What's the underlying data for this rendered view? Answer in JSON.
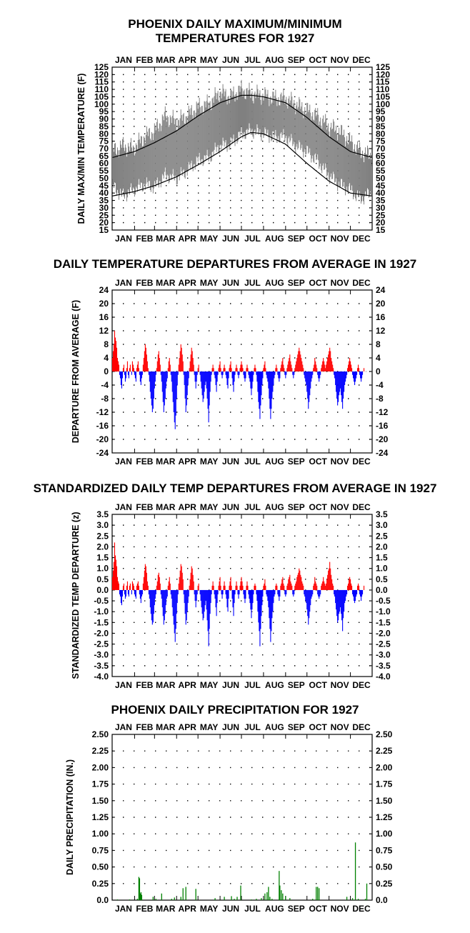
{
  "months": [
    "JAN",
    "FEB",
    "MAR",
    "APR",
    "MAY",
    "JUN",
    "JUL",
    "AUG",
    "SEP",
    "OCT",
    "NOV",
    "DEC"
  ],
  "colors": {
    "positive": "#ff0000",
    "negative": "#0000ff",
    "precip": "#008000",
    "range": "#808080",
    "normal": "#000000"
  },
  "panel1": {
    "title_line1": "PHOENIX DAILY MAXIMUM/MINIMUM",
    "title_line2": "TEMPERATURES FOR 1927",
    "ylabel": "DAILY MAX/MIN TEMPERATURE  (F)",
    "ticks": [
      "125",
      "120",
      "115",
      "110",
      "105",
      "100",
      "95",
      "90",
      "85",
      "80",
      "75",
      "70",
      "65",
      "60",
      "55",
      "50",
      "45",
      "40",
      "35",
      "30",
      "25",
      "20",
      "15"
    ]
  },
  "panel2": {
    "title": "DAILY TEMPERATURE DEPARTURES FROM AVERAGE IN 1927",
    "ylabel": "DEPARTURE FROM AVERAGE  (F)",
    "ticks": [
      "24",
      "20",
      "16",
      "12",
      "8",
      "4",
      "0",
      "-4",
      "-8",
      "-12",
      "-16",
      "-20",
      "-24"
    ]
  },
  "panel3": {
    "title": "STANDARDIZED DAILY TEMP DEPARTURES FROM AVERAGE IN 1927",
    "ylabel": "STANDARDIZED TEMP DEPARTURE  (z)",
    "ticks": [
      "3.5",
      "3.0",
      "2.5",
      "2.0",
      "1.5",
      "1.0",
      "0.5",
      "0.0",
      "-0.5",
      "-1.0",
      "-1.5",
      "-2.0",
      "-2.5",
      "-3.0",
      "-3.5",
      "-4.0"
    ]
  },
  "panel4": {
    "title": "PHOENIX DAILY PRECIPITATION FOR 1927",
    "ylabel": "DAILY PRECIPITATION (IN.)",
    "ticks": [
      "2.50",
      "2.25",
      "2.00",
      "1.75",
      "1.50",
      "1.25",
      "1.00",
      "0.75",
      "0.50",
      "0.25",
      "0.0"
    ]
  },
  "chart_data": [
    {
      "type": "area",
      "title": "PHOENIX DAILY MAXIMUM/MINIMUM TEMPERATURES FOR 1927",
      "ylabel": "DAILY MAX/MIN TEMPERATURE  (F)",
      "ylim": [
        15,
        125
      ],
      "x_unit": "day of year",
      "grid": true,
      "series": [
        {
          "name": "observed",
          "type": "range",
          "sampled_days": [
            1,
            15,
            30,
            46,
            60,
            75,
            91,
            105,
            121,
            136,
            152,
            166,
            182,
            196,
            213,
            227,
            244,
            258,
            274,
            288,
            305,
            319,
            335,
            349,
            365
          ],
          "max": [
            68,
            72,
            70,
            78,
            82,
            92,
            88,
            92,
            98,
            100,
            108,
            105,
            110,
            107,
            106,
            104,
            104,
            100,
            96,
            92,
            85,
            82,
            75,
            68,
            65
          ],
          "min": [
            45,
            38,
            42,
            46,
            44,
            52,
            50,
            55,
            62,
            64,
            72,
            73,
            80,
            82,
            80,
            78,
            78,
            72,
            68,
            62,
            52,
            46,
            42,
            36,
            40
          ]
        },
        {
          "name": "normal max",
          "type": "line",
          "days": [
            1,
            32,
            60,
            91,
            121,
            152,
            182,
            196,
            213,
            244,
            274,
            305,
            335,
            365
          ],
          "values": [
            64,
            68,
            74,
            82,
            92,
            101,
            106,
            106,
            105,
            101,
            91,
            78,
            68,
            64
          ]
        },
        {
          "name": "normal min",
          "type": "line",
          "days": [
            1,
            32,
            60,
            91,
            121,
            152,
            182,
            196,
            213,
            244,
            274,
            305,
            335,
            365
          ],
          "values": [
            38,
            41,
            45,
            51,
            59,
            68,
            78,
            81,
            80,
            73,
            60,
            48,
            40,
            38
          ]
        }
      ]
    },
    {
      "type": "bar",
      "title": "DAILY TEMPERATURE DEPARTURES FROM AVERAGE IN 1927",
      "ylabel": "DEPARTURE FROM AVERAGE  (F)",
      "ylim": [
        -24,
        24
      ],
      "x_unit": "day of year",
      "grid": true,
      "values": [
        4,
        6,
        8,
        12,
        10,
        9,
        7,
        4,
        3,
        2,
        -1,
        -2,
        -4,
        -5,
        -2,
        1,
        2,
        -1,
        -3,
        -2,
        1,
        3,
        -1,
        -2,
        1,
        2,
        0,
        -1,
        3,
        2,
        1,
        -1,
        -2,
        -3,
        1,
        2,
        3,
        1,
        -1,
        -3,
        -4,
        -2,
        -1,
        2,
        4,
        6,
        8,
        7,
        5,
        3,
        1,
        -1,
        -3,
        -6,
        -8,
        -10,
        -12,
        -11,
        -8,
        -5,
        -3,
        -1,
        1,
        3,
        5,
        6,
        4,
        2,
        -1,
        -3,
        -6,
        -9,
        -12,
        -10,
        -8,
        -5,
        -3,
        -2,
        1,
        3,
        4,
        2,
        -1,
        -3,
        -6,
        -9,
        -12,
        -15,
        -17,
        -13,
        -8,
        -4,
        -1,
        2,
        4,
        6,
        8,
        7,
        5,
        3,
        -1,
        -4,
        -8,
        -12,
        -10,
        -7,
        -4,
        -2,
        1,
        3,
        5,
        7,
        6,
        4,
        2,
        -1,
        -3,
        -5,
        -3,
        -1,
        1,
        2,
        0,
        -1,
        -3,
        -5,
        -7,
        -9,
        -8,
        -6,
        -4,
        -3,
        -5,
        -8,
        -11,
        -15,
        -10,
        -6,
        -3,
        -1,
        1,
        2,
        1,
        -1,
        -2,
        -4,
        -6,
        -3,
        -1,
        1,
        2,
        3,
        1,
        -1,
        -2,
        -1,
        1,
        2,
        1,
        -1,
        -2,
        -4,
        -5,
        -2,
        1,
        2,
        3,
        1,
        -2,
        -4,
        -6,
        -3,
        -1,
        1,
        2,
        1,
        -1,
        -2,
        -1,
        1,
        2,
        3,
        2,
        1,
        -1,
        -2,
        -3,
        -2,
        1,
        2,
        1,
        -1,
        -2,
        -3,
        -5,
        -7,
        -5,
        -3,
        -1,
        1,
        2,
        1,
        -1,
        -3,
        -6,
        -9,
        -11,
        -14,
        -10,
        -7,
        -4,
        -2,
        1,
        2,
        3,
        1,
        -1,
        -2,
        -3,
        -5,
        -8,
        -11,
        -14,
        -11,
        -8,
        -6,
        -4,
        -2,
        -1,
        1,
        2,
        1,
        -1,
        -2,
        -3,
        -2,
        1,
        2,
        3,
        4,
        2,
        1,
        -1,
        -2,
        -1,
        1,
        2,
        3,
        4,
        5,
        3,
        2,
        1,
        -1,
        -2,
        -1,
        1,
        2,
        3,
        4,
        5,
        6,
        7,
        6,
        5,
        4,
        3,
        2,
        1,
        -1,
        -2,
        -3,
        -4,
        -6,
        -8,
        -11,
        -9,
        -7,
        -5,
        -3,
        -2,
        -1,
        1,
        2,
        4,
        3,
        2,
        1,
        -1,
        -2,
        -3,
        -2,
        -1,
        1,
        2,
        3,
        4,
        3,
        2,
        1,
        2,
        3,
        4,
        5,
        6,
        7,
        6,
        4,
        3,
        2,
        1,
        -1,
        -2,
        -4,
        -6,
        -8,
        -10,
        -9,
        -7,
        -6,
        -5,
        -7,
        -9,
        -11,
        -8,
        -6,
        -4,
        -3,
        -2,
        -1,
        1,
        2,
        3,
        4,
        3,
        2,
        1,
        -1,
        -2,
        -3,
        -4,
        -3,
        -2,
        -1,
        1,
        2,
        1,
        -1,
        -2,
        -3,
        -2,
        -1,
        0,
        1
      ]
    },
    {
      "type": "bar",
      "title": "STANDARDIZED DAILY TEMP DEPARTURES FROM AVERAGE IN 1927",
      "ylabel": "STANDARDIZED TEMP DEPARTURE  (z)",
      "ylim": [
        -4.0,
        3.5
      ],
      "x_unit": "day of year",
      "grid": true,
      "values": [
        0.6,
        0.9,
        1.3,
        2.2,
        1.6,
        1.4,
        1.1,
        0.6,
        0.4,
        0.3,
        -0.2,
        -0.3,
        -0.6,
        -0.7,
        -0.3,
        0.2,
        0.3,
        -0.2,
        -0.4,
        -0.3,
        0.2,
        0.4,
        -0.2,
        -0.3,
        0.2,
        0.3,
        0.0,
        -0.2,
        0.4,
        0.3,
        0.2,
        -0.2,
        -0.3,
        -0.4,
        0.2,
        0.3,
        0.4,
        0.2,
        -0.2,
        -0.4,
        -0.6,
        -0.3,
        -0.2,
        0.3,
        0.6,
        0.9,
        1.2,
        1.1,
        0.8,
        0.4,
        0.2,
        -0.2,
        -0.4,
        -0.8,
        -1.1,
        -1.4,
        -1.6,
        -1.5,
        -1.1,
        -0.7,
        -0.4,
        -0.2,
        0.2,
        0.4,
        0.7,
        0.8,
        0.6,
        0.3,
        -0.2,
        -0.4,
        -0.8,
        -1.2,
        -1.6,
        -1.4,
        -1.1,
        -0.7,
        -0.4,
        -0.3,
        0.2,
        0.4,
        0.6,
        0.3,
        -0.2,
        -0.4,
        -0.8,
        -1.2,
        -1.6,
        -2.0,
        -2.4,
        -1.8,
        -1.1,
        -0.6,
        -0.2,
        0.3,
        0.6,
        0.9,
        1.2,
        1.1,
        0.8,
        0.5,
        -0.2,
        -0.6,
        -1.1,
        -1.6,
        -1.4,
        -1.0,
        -0.6,
        -0.3,
        0.2,
        0.5,
        0.8,
        1.1,
        1.0,
        0.7,
        0.4,
        -0.2,
        -0.5,
        -0.8,
        -0.5,
        -0.2,
        0.2,
        0.3,
        0.0,
        -0.2,
        -0.5,
        -0.8,
        -1.1,
        -1.4,
        -1.3,
        -1.0,
        -0.7,
        -0.5,
        -0.9,
        -1.4,
        -1.9,
        -2.6,
        -1.8,
        -1.1,
        -0.6,
        -0.2,
        0.2,
        0.4,
        0.2,
        -0.2,
        -0.4,
        -0.8,
        -1.2,
        -0.6,
        -0.2,
        0.2,
        0.4,
        0.6,
        0.2,
        -0.2,
        -0.4,
        -0.2,
        0.2,
        0.4,
        0.2,
        -0.2,
        -0.4,
        -0.8,
        -1.0,
        -0.4,
        0.2,
        0.4,
        0.6,
        0.2,
        -0.4,
        -0.8,
        -1.2,
        -0.6,
        -0.2,
        0.2,
        0.4,
        0.2,
        -0.2,
        -0.4,
        -0.2,
        0.2,
        0.4,
        0.6,
        0.4,
        0.2,
        -0.2,
        -0.4,
        -0.6,
        -0.4,
        0.2,
        0.4,
        0.2,
        -0.2,
        -0.4,
        -0.6,
        -0.9,
        -1.3,
        -0.9,
        -0.6,
        -0.2,
        0.2,
        0.3,
        0.2,
        -0.2,
        -0.5,
        -1.0,
        -1.5,
        -1.9,
        -2.6,
        -1.8,
        -1.2,
        -0.7,
        -0.3,
        0.2,
        0.3,
        0.5,
        0.2,
        -0.2,
        -0.3,
        -0.5,
        -0.8,
        -1.3,
        -1.8,
        -2.4,
        -1.9,
        -1.3,
        -1.0,
        -0.6,
        -0.3,
        -0.2,
        0.2,
        0.3,
        0.2,
        -0.2,
        -0.3,
        -0.5,
        -0.3,
        0.2,
        0.3,
        0.5,
        0.6,
        0.3,
        0.2,
        -0.2,
        -0.3,
        -0.2,
        0.2,
        0.3,
        0.5,
        0.6,
        0.7,
        0.4,
        0.3,
        0.2,
        -0.2,
        -0.3,
        -0.2,
        0.2,
        0.3,
        0.4,
        0.6,
        0.7,
        0.8,
        1.0,
        0.9,
        0.7,
        0.6,
        0.4,
        0.3,
        0.2,
        -0.2,
        -0.3,
        -0.5,
        -0.6,
        -0.9,
        -1.2,
        -1.6,
        -1.3,
        -1.0,
        -0.7,
        -0.4,
        -0.3,
        -0.2,
        0.2,
        0.3,
        0.6,
        0.4,
        0.3,
        0.2,
        -0.2,
        -0.3,
        -0.4,
        -0.3,
        -0.2,
        0.2,
        0.3,
        0.4,
        0.6,
        0.4,
        0.3,
        0.2,
        0.3,
        0.5,
        0.7,
        0.9,
        1.0,
        1.3,
        1.0,
        0.7,
        0.5,
        0.3,
        0.2,
        -0.2,
        -0.3,
        -0.6,
        -0.9,
        -1.2,
        -1.5,
        -1.4,
        -1.1,
        -1.0,
        -0.8,
        -1.1,
        -1.4,
        -1.9,
        -1.3,
        -1.0,
        -0.6,
        -0.5,
        -0.3,
        -0.2,
        0.2,
        0.3,
        0.5,
        0.6,
        0.5,
        0.3,
        0.2,
        -0.2,
        -0.3,
        -0.5,
        -0.6,
        -0.5,
        -0.3,
        -0.2,
        0.2,
        0.3,
        0.2,
        -0.2,
        -0.3,
        -0.5,
        -0.3,
        -0.2,
        0.0,
        0.2
      ]
    },
    {
      "type": "bar",
      "title": "PHOENIX DAILY PRECIPITATION FOR 1927",
      "ylabel": "DAILY PRECIPITATION (IN.)",
      "ylim": [
        0,
        2.5
      ],
      "x_unit": "day of year",
      "grid": true,
      "points": [
        [
          8,
          0.01
        ],
        [
          25,
          0.01
        ],
        [
          36,
          0.02
        ],
        [
          38,
          0.35
        ],
        [
          39,
          0.33
        ],
        [
          40,
          0.1
        ],
        [
          41,
          0.12
        ],
        [
          42,
          0.08
        ],
        [
          58,
          0.05
        ],
        [
          62,
          0.02
        ],
        [
          70,
          0.1
        ],
        [
          84,
          0.02
        ],
        [
          88,
          0.04
        ],
        [
          97,
          0.05
        ],
        [
          100,
          0.18
        ],
        [
          104,
          0.2
        ],
        [
          118,
          0.17
        ],
        [
          145,
          0.03
        ],
        [
          158,
          0.05
        ],
        [
          168,
          0.06
        ],
        [
          172,
          0.02
        ],
        [
          176,
          0.05
        ],
        [
          181,
          0.22
        ],
        [
          196,
          0.01
        ],
        [
          203,
          0.02
        ],
        [
          210,
          0.03
        ],
        [
          215,
          0.1
        ],
        [
          218,
          0.12
        ],
        [
          220,
          0.2
        ],
        [
          222,
          0.05
        ],
        [
          225,
          0.02
        ],
        [
          235,
          0.44
        ],
        [
          236,
          0.22
        ],
        [
          238,
          0.15
        ],
        [
          240,
          0.1
        ],
        [
          244,
          0.06
        ],
        [
          250,
          0.03
        ],
        [
          282,
          0.02
        ],
        [
          287,
          0.2
        ],
        [
          289,
          0.2
        ],
        [
          291,
          0.18
        ],
        [
          330,
          0.05
        ],
        [
          338,
          0.03
        ],
        [
          342,
          0.87
        ],
        [
          346,
          0.02
        ],
        [
          356,
          0.02
        ],
        [
          358,
          0.25
        ]
      ]
    }
  ]
}
